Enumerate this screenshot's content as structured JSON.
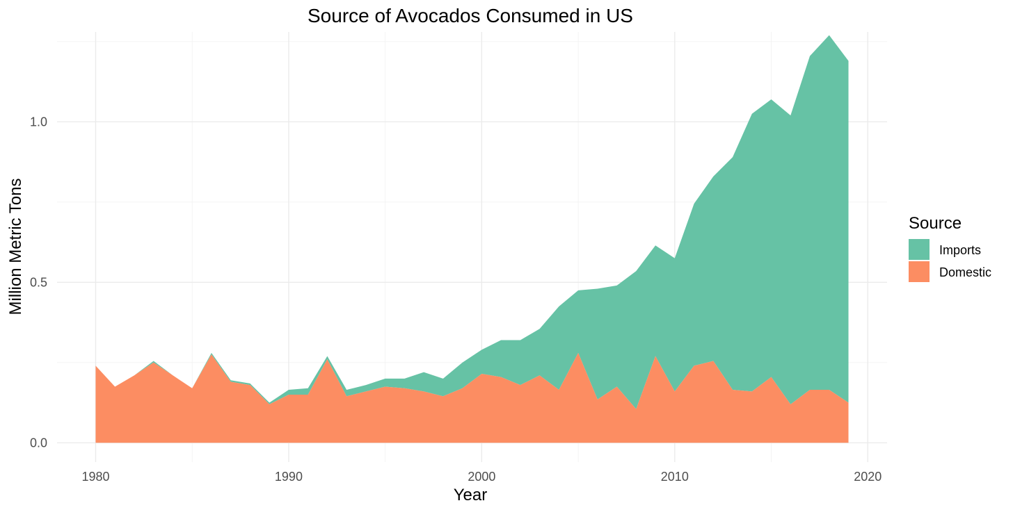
{
  "chart_data": {
    "type": "area",
    "stacked": true,
    "title": "Source of Avocados Consumed in US",
    "xlabel": "Year",
    "ylabel": "Million Metric Tons",
    "xlim": [
      1978,
      2021
    ],
    "ylim": [
      -0.06,
      1.28
    ],
    "x_ticks": [
      1980,
      1990,
      2000,
      2010,
      2020
    ],
    "y_ticks": [
      0.0,
      0.5,
      1.0
    ],
    "y_tick_labels": [
      "0.0",
      "0.5",
      "1.0"
    ],
    "grid": true,
    "legend": {
      "title": "Source",
      "position": "right",
      "entries": [
        {
          "name": "Imports",
          "color": "#66c2a5"
        },
        {
          "name": "Domestic",
          "color": "#fc8d62"
        }
      ]
    },
    "x": [
      1980,
      1981,
      1982,
      1983,
      1984,
      1985,
      1986,
      1987,
      1988,
      1989,
      1990,
      1991,
      1992,
      1993,
      1994,
      1995,
      1996,
      1997,
      1998,
      1999,
      2000,
      2001,
      2002,
      2003,
      2004,
      2005,
      2006,
      2007,
      2008,
      2009,
      2010,
      2011,
      2012,
      2013,
      2014,
      2015,
      2016,
      2017,
      2018,
      2019
    ],
    "series": [
      {
        "name": "Domestic",
        "color": "#fc8d62",
        "values": [
          0.24,
          0.175,
          0.21,
          0.25,
          0.21,
          0.17,
          0.275,
          0.19,
          0.18,
          0.12,
          0.15,
          0.15,
          0.26,
          0.145,
          0.16,
          0.175,
          0.17,
          0.16,
          0.145,
          0.17,
          0.215,
          0.205,
          0.18,
          0.21,
          0.165,
          0.28,
          0.135,
          0.175,
          0.105,
          0.27,
          0.16,
          0.24,
          0.255,
          0.165,
          0.16,
          0.205,
          0.12,
          0.165,
          0.165,
          0.125
        ]
      },
      {
        "name": "Imports",
        "color": "#66c2a5",
        "values": [
          0.0,
          0.0,
          0.0,
          0.005,
          0.0,
          0.0,
          0.005,
          0.005,
          0.005,
          0.005,
          0.015,
          0.02,
          0.01,
          0.02,
          0.02,
          0.025,
          0.03,
          0.06,
          0.055,
          0.08,
          0.075,
          0.115,
          0.14,
          0.145,
          0.26,
          0.195,
          0.345,
          0.315,
          0.43,
          0.345,
          0.415,
          0.505,
          0.575,
          0.725,
          0.865,
          0.865,
          0.9,
          1.04,
          1.105,
          1.065
        ]
      }
    ]
  }
}
